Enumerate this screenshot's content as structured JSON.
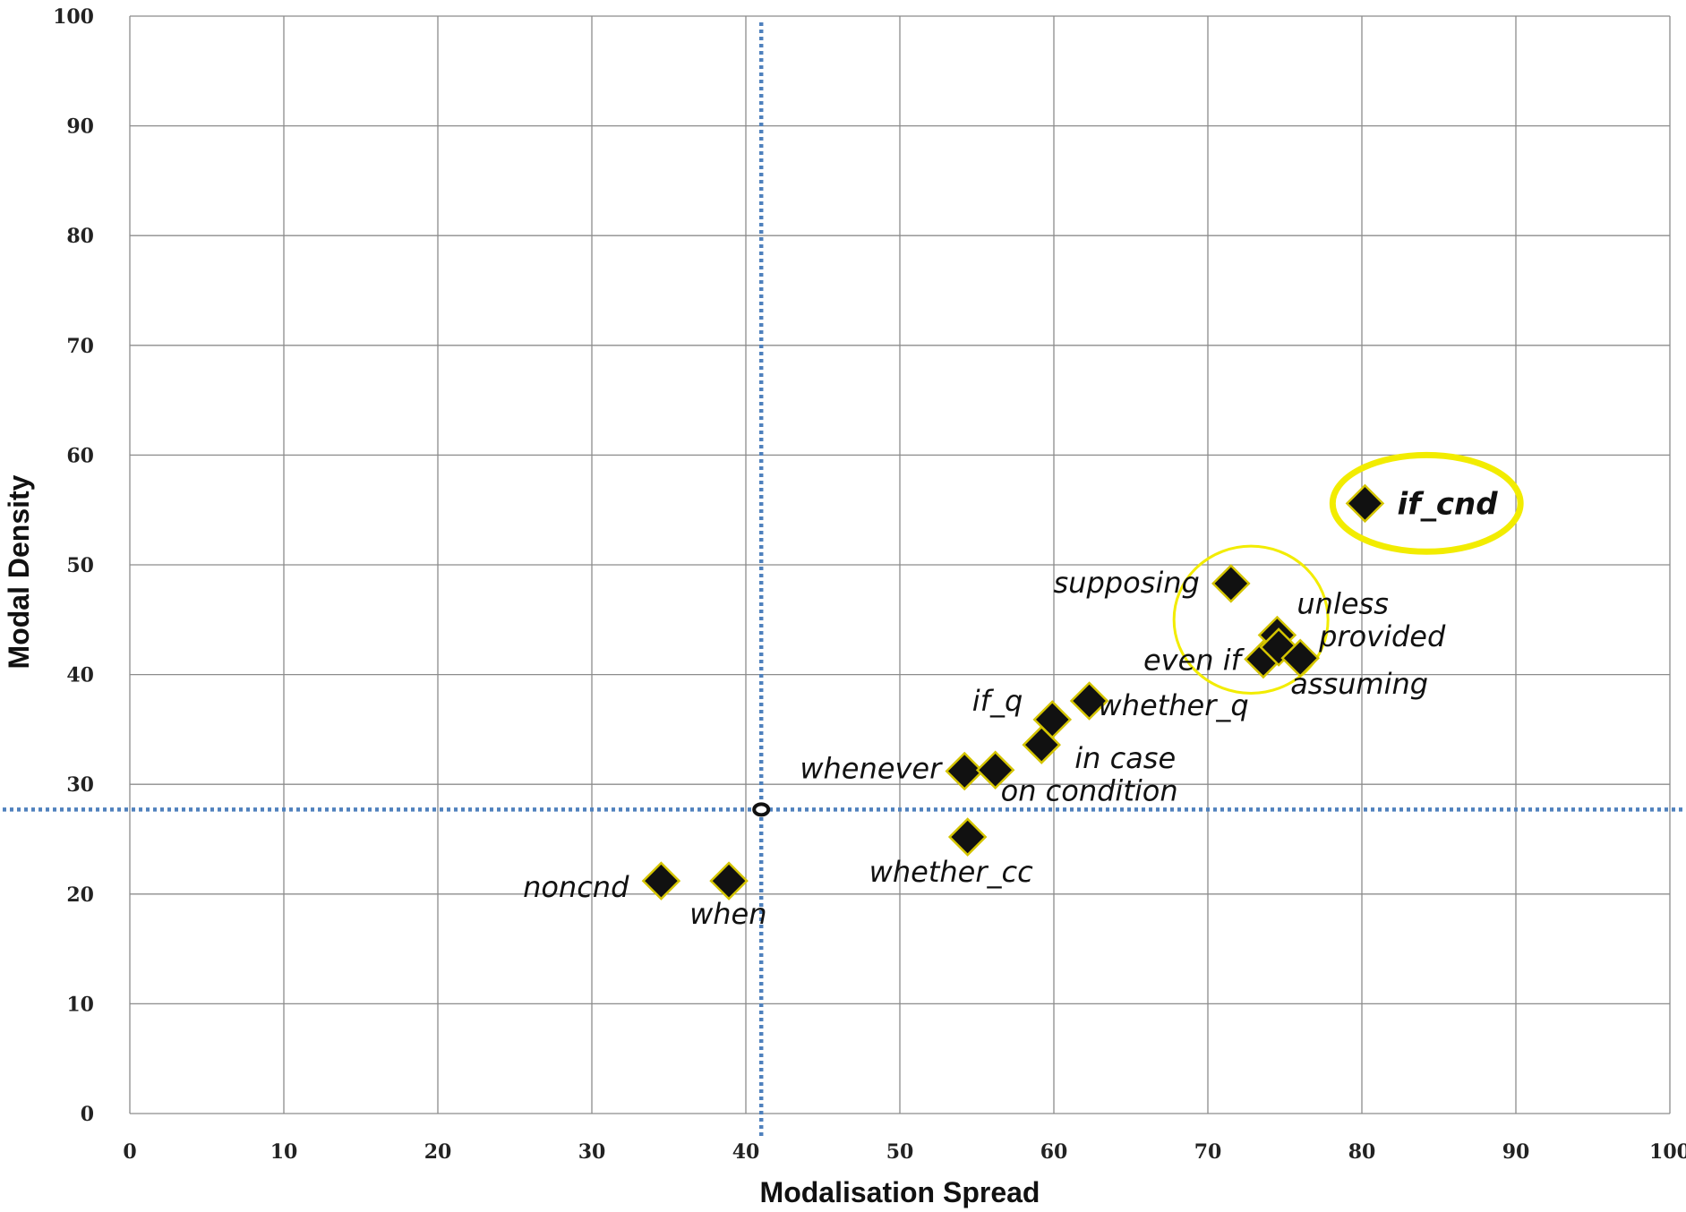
{
  "chart_data": {
    "type": "scatter",
    "xlabel": "Modalisation Spread",
    "ylabel": "Modal Density",
    "xlim": [
      0,
      100
    ],
    "ylim": [
      0,
      100
    ],
    "xticks": [
      0,
      10,
      20,
      30,
      40,
      50,
      60,
      70,
      80,
      90,
      100
    ],
    "yticks": [
      0,
      10,
      20,
      30,
      40,
      50,
      60,
      70,
      80,
      90,
      100
    ],
    "grid": true,
    "points": [
      {
        "label": "noncnd",
        "x": 34.5,
        "y": 21.2
      },
      {
        "label": "when",
        "x": 38.9,
        "y": 21.2
      },
      {
        "label": "whether_cc",
        "x": 54.4,
        "y": 25.2
      },
      {
        "label": "whenever",
        "x": 54.2,
        "y": 31.2
      },
      {
        "label": "on condition",
        "x": 56.2,
        "y": 31.3
      },
      {
        "label": "in case",
        "x": 59.2,
        "y": 33.6
      },
      {
        "label": "if_q",
        "x": 59.9,
        "y": 35.9
      },
      {
        "label": "whether_q",
        "x": 62.3,
        "y": 37.6
      },
      {
        "label": "supposing",
        "x": 71.5,
        "y": 48.3
      },
      {
        "label": "unless",
        "x": 74.5,
        "y": 43.6
      },
      {
        "label": "even if",
        "x": 73.6,
        "y": 41.4
      },
      {
        "label": "provided",
        "x": 74.6,
        "y": 42.5
      },
      {
        "label": "assuming",
        "x": 76.0,
        "y": 41.5
      },
      {
        "label": "if_cnd",
        "x": 80.2,
        "y": 55.6
      }
    ],
    "reference_lines": {
      "x": 41.0,
      "y": 27.7
    },
    "reference_point": {
      "x": 41.0,
      "y": 27.7
    },
    "highlight_circles": [
      {
        "center_x": 72.8,
        "center_y": 45.0,
        "radius_x": 5.0,
        "radius_y": 6.7
      },
      {
        "center_x": 84.2,
        "center_y": 55.6,
        "radius_x": 6.1,
        "radius_y": 4.4
      }
    ],
    "colors": {
      "marker_fill": "#111111",
      "marker_edge": "#d4c400",
      "highlight": "#f2ec00",
      "reference_line": "#4f81bd",
      "grid": "#8c8c8c"
    }
  }
}
